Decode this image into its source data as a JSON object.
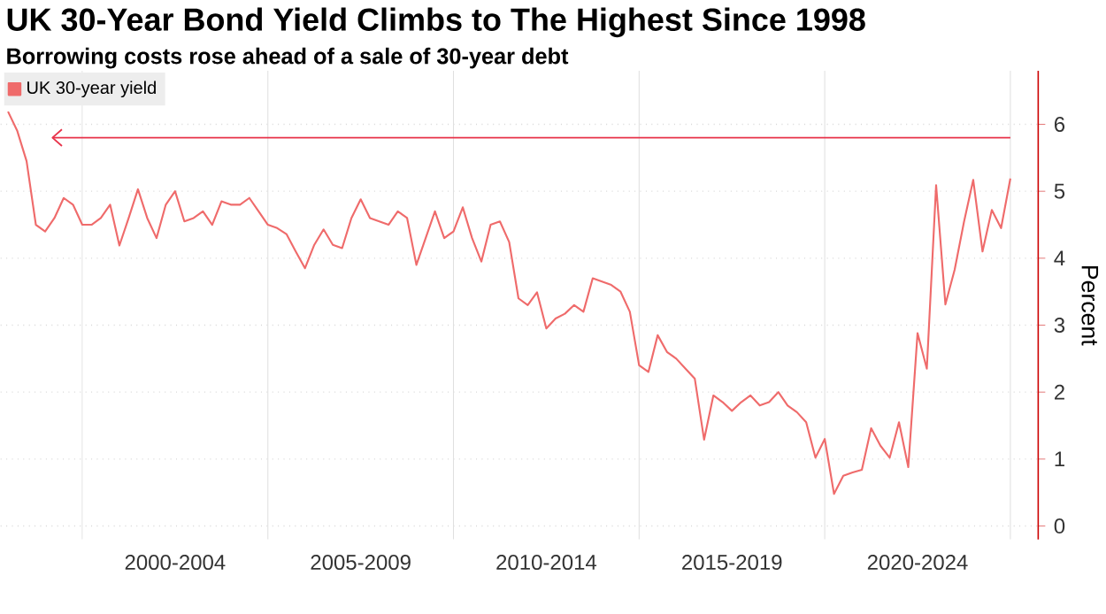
{
  "chart_data": {
    "type": "line",
    "title": "UK 30-Year Bond Yield Climbs to The Highest Since 1998",
    "subtitle": "Borrowing costs rose ahead of a sale of 30-year debt",
    "ylabel": "Percent",
    "categories": [
      null,
      null,
      null,
      null,
      null,
      null,
      null,
      null,
      null,
      null,
      null,
      null,
      null,
      null,
      null,
      null,
      null,
      null,
      "2000-2004",
      null,
      null,
      null,
      null,
      null,
      null,
      null,
      null,
      null,
      null,
      null,
      null,
      null,
      null,
      null,
      null,
      null,
      null,
      null,
      "2005-2009",
      null,
      null,
      null,
      null,
      null,
      null,
      null,
      null,
      null,
      null,
      null,
      null,
      null,
      null,
      null,
      null,
      null,
      null,
      null,
      "2010-2014",
      null,
      null,
      null,
      null,
      null,
      null,
      null,
      null,
      null,
      null,
      null,
      null,
      null,
      null,
      null,
      null,
      null,
      null,
      null,
      "2015-2019",
      null,
      null,
      null,
      null,
      null,
      null,
      null,
      null,
      null,
      null,
      null,
      null,
      null,
      null,
      null,
      null,
      null,
      null,
      null,
      "2020-2024",
      null,
      null,
      null,
      null,
      null,
      null,
      null,
      null,
      null,
      null
    ],
    "series": [
      {
        "name": "UK 30-year yield",
        "color": "#ef6b6b",
        "values": [
          6.19,
          5.9,
          5.45,
          4.5,
          4.4,
          4.6,
          4.9,
          4.8,
          4.5,
          4.5,
          4.6,
          4.8,
          4.19,
          4.6,
          5.03,
          4.6,
          4.3,
          4.8,
          5.0,
          4.55,
          4.6,
          4.7,
          4.5,
          4.85,
          4.8,
          4.8,
          4.9,
          4.7,
          4.5,
          4.45,
          4.36,
          4.1,
          3.85,
          4.2,
          4.43,
          4.2,
          4.15,
          4.6,
          4.88,
          4.6,
          4.55,
          4.5,
          4.7,
          4.6,
          3.9,
          4.3,
          4.7,
          4.3,
          4.4,
          4.76,
          4.3,
          3.95,
          4.5,
          4.55,
          4.24,
          3.4,
          3.3,
          3.49,
          2.95,
          3.1,
          3.17,
          3.3,
          3.2,
          3.7,
          3.65,
          3.6,
          3.5,
          3.2,
          2.4,
          2.3,
          2.85,
          2.6,
          2.5,
          2.35,
          2.2,
          1.29,
          1.95,
          1.85,
          1.72,
          1.85,
          1.95,
          1.8,
          1.85,
          2.0,
          1.8,
          1.7,
          1.55,
          1.02,
          1.3,
          0.48,
          0.75,
          0.8,
          0.84,
          1.46,
          1.2,
          1.02,
          1.55,
          0.88,
          2.88,
          2.35,
          5.09,
          3.31,
          3.83,
          4.54,
          5.17,
          4.1,
          4.72,
          4.45,
          5.19
        ]
      }
    ],
    "ylim": [
      -0.2,
      6.8
    ],
    "yticks": [
      0,
      1,
      2,
      3,
      4,
      5,
      6
    ],
    "ref_lines": [
      {
        "axis": "y",
        "value": 5.8,
        "color": "#e8334a"
      }
    ],
    "grid": true,
    "legend": "top left",
    "line_style": "solid",
    "marker": "none"
  }
}
